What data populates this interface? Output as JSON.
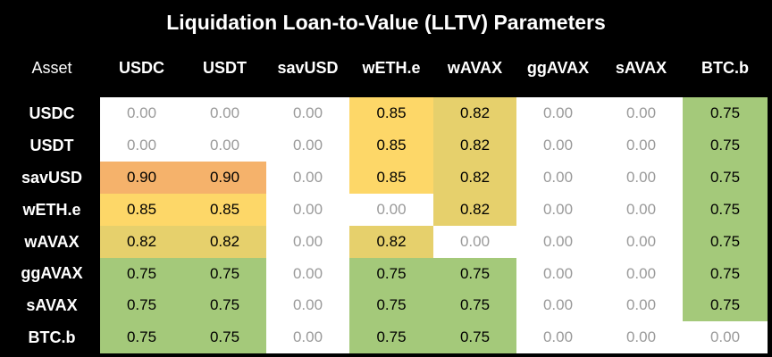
{
  "chart_data": {
    "type": "heatmap",
    "title": "Liquidation Loan-to-Value (LLTV) Parameters",
    "corner_label": "Asset",
    "columns": [
      "USDC",
      "USDT",
      "savUSD",
      "wETH.e",
      "wAVAX",
      "ggAVAX",
      "sAVAX",
      "BTC.b"
    ],
    "rows": [
      "USDC",
      "USDT",
      "savUSD",
      "wETH.e",
      "wAVAX",
      "ggAVAX",
      "sAVAX",
      "BTC.b"
    ],
    "values": [
      [
        "0.00",
        "0.00",
        "0.00",
        "0.85",
        "0.82",
        "0.00",
        "0.00",
        "0.75"
      ],
      [
        "0.00",
        "0.00",
        "0.00",
        "0.85",
        "0.82",
        "0.00",
        "0.00",
        "0.75"
      ],
      [
        "0.90",
        "0.90",
        "0.00",
        "0.85",
        "0.82",
        "0.00",
        "0.00",
        "0.75"
      ],
      [
        "0.85",
        "0.85",
        "0.00",
        "0.00",
        "0.82",
        "0.00",
        "0.00",
        "0.75"
      ],
      [
        "0.82",
        "0.82",
        "0.00",
        "0.82",
        "0.00",
        "0.00",
        "0.00",
        "0.75"
      ],
      [
        "0.75",
        "0.75",
        "0.00",
        "0.75",
        "0.75",
        "0.00",
        "0.00",
        "0.75"
      ],
      [
        "0.75",
        "0.75",
        "0.00",
        "0.75",
        "0.75",
        "0.00",
        "0.00",
        "0.75"
      ],
      [
        "0.75",
        "0.75",
        "0.00",
        "0.75",
        "0.75",
        "0.00",
        "0.00",
        "0.00"
      ]
    ],
    "color_scale": {
      "0.90": "#f5b26b",
      "0.85": "#fdd768",
      "0.82": "#e6d06c",
      "0.75": "#a4c97a",
      "0.00": "#ffffff"
    }
  }
}
